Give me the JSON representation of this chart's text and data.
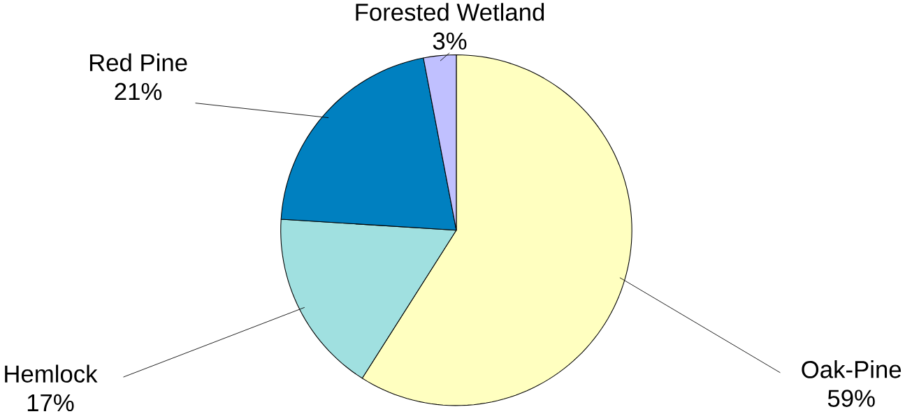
{
  "chart_data": {
    "type": "pie",
    "categories": [
      "Oak-Pine",
      "Hemlock",
      "Red Pine",
      "Forested Wetland"
    ],
    "values": [
      59,
      17,
      21,
      3
    ],
    "value_labels": [
      "59%",
      "17%",
      "21%",
      "3%"
    ],
    "colors": [
      "#ffffc0",
      "#a0e0e0",
      "#0080c0",
      "#c0c0ff"
    ]
  }
}
